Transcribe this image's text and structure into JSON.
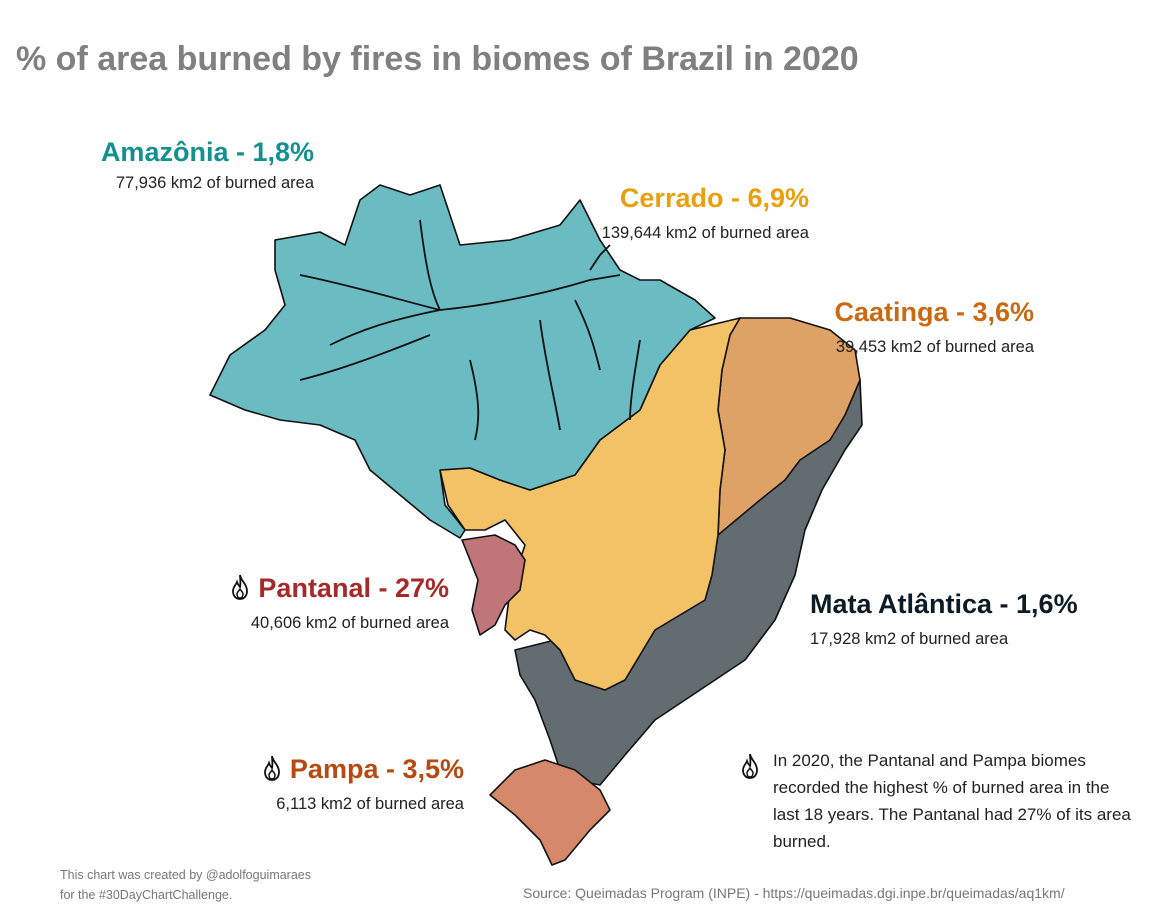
{
  "title": "% of area burned by fires in biomes of Brazil in 2020",
  "biomes": {
    "amazonia": {
      "name": "Amazônia - 1,8%",
      "area": "77,936 km2 of burned area",
      "color": "#6bbcc2",
      "label_color": "#13918f"
    },
    "cerrado": {
      "name": "Cerrado - 6,9%",
      "area": "139,644 km2 of burned area",
      "color": "#f3c166",
      "label_color": "#e8a00e"
    },
    "caatinga": {
      "name": "Caatinga - 3,6%",
      "area": "39,453 km2 of burned area",
      "color": "#dfa266",
      "label_color": "#c96a12"
    },
    "pantanal": {
      "name": "Pantanal - 27%",
      "area": "40,606 km2 of burned area",
      "color": "#c07579",
      "label_color": "#a52a2a"
    },
    "mata_atlantica": {
      "name": "Mata Atlântica - 1,6%",
      "area": "17,928 km2 of burned area",
      "color": "#636c70",
      "label_color": "#0d1b26"
    },
    "pampa": {
      "name": "Pampa - 3,5%",
      "area": "6,113 km2 of burned area",
      "color": "#d5896a",
      "label_color": "#b84a10"
    }
  },
  "note": "In 2020, the Pantanal and Pampa biomes recorded the highest % of burned area in the last 18 years. The Pantanal had 27% of its area burned.",
  "credit": {
    "line1": "This chart was created by @adolfoguimaraes",
    "line2": "for the #30DayChartChallenge."
  },
  "source": "Source: Queimadas Program (INPE) - https://queimadas.dgi.inpe.br/queimadas/aq1km/",
  "icons": [
    "fire-icon"
  ]
}
